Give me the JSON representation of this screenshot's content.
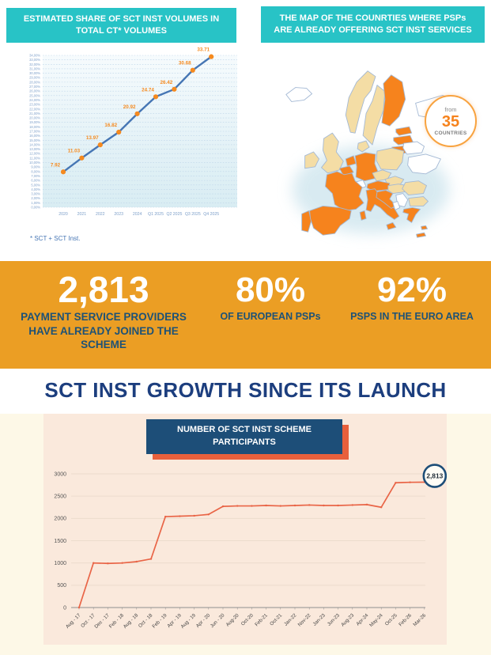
{
  "palette": {
    "teal": "#28c3c6",
    "band_orange": "#eb9e24",
    "stat_label_blue": "#1e5276",
    "royal_blue": "#1c3e7e",
    "navy": "#1d4e78",
    "coral": "#e8603c",
    "growth_line": "#e96547",
    "share_line_blue": "#4676b4",
    "share_point_orange": "#f58a1f",
    "axis_blue": "#7d9fc9",
    "map_orange": "#f6831d",
    "map_beige": "#f4dda5",
    "map_white": "#ffffff",
    "map_border": "#a3b8d4",
    "panel_peach": "#fae9dc",
    "page_cream": "#fdf8e7"
  },
  "header_left": {
    "title": "ESTIMATED SHARE OF SCT INST VOLUMES IN TOTAL CT* VOLUMES"
  },
  "header_right": {
    "title": "THE MAP OF THE COUNRTIES WHERE PSPs ARE ALREADY OFFERING SCT INST SERVICES"
  },
  "share_chart": {
    "footnote": "* SCT + SCT Inst."
  },
  "map_badge": {
    "from": "from",
    "number": "35",
    "countries": "COUNTRIES"
  },
  "stats": [
    {
      "value": "2,813",
      "label": "PAYMENT SERVICE PROVIDERS HAVE ALREADY JOINED THE SCHEME"
    },
    {
      "value": "80%",
      "label": "OF EUROPEAN PSPs"
    },
    {
      "value": "92%",
      "label": "PSPS IN THE EURO AREA"
    }
  ],
  "growth": {
    "title": "SCT INST GROWTH SINCE ITS LAUNCH",
    "chart_header": "NUMBER OF SCT INST SCHEME PARTICIPANTS"
  },
  "chart_data": [
    {
      "type": "line",
      "title": "ESTIMATED SHARE OF SCT INST VOLUMES IN TOTAL CT* VOLUMES",
      "categories": [
        "2020",
        "2021",
        "2022",
        "2023",
        "2024",
        "Q1 2025",
        "Q2 2025",
        "Q3 2025",
        "Q4 2025"
      ],
      "values": [
        7.92,
        11.03,
        13.97,
        16.82,
        20.92,
        24.74,
        26.42,
        30.68,
        33.71
      ],
      "xlabel": "",
      "ylabel": "",
      "ylim": [
        0,
        34
      ],
      "ytick_step": 1,
      "ytick_suffix": ",00%",
      "grid": "dashed-horizontal",
      "legend": "none",
      "footnote": "* SCT + SCT Inst."
    },
    {
      "type": "line",
      "title": "NUMBER OF SCT INST SCHEME PARTICIPANTS",
      "categories": [
        "Aug - 17",
        "Oct - 17",
        "Dec - 17",
        "Feb - 18",
        "Aug - 18",
        "Oct - 18",
        "Feb - 19",
        "Apr - 19",
        "Aug - 19",
        "Apr - 20",
        "Jun - 20",
        "Aug-20",
        "Oct-20",
        "Feb-21",
        "Oct-21",
        "Jan-22",
        "Nov-22",
        "Jan-23",
        "Jun-23",
        "Aug-23",
        "Apr-24",
        "May-24",
        "Oct-25",
        "Feb-26",
        "Mar-26"
      ],
      "values": [
        0,
        1000,
        990,
        1000,
        1030,
        1090,
        2040,
        2050,
        2060,
        2090,
        2270,
        2280,
        2280,
        2290,
        2280,
        2290,
        2300,
        2290,
        2290,
        2300,
        2310,
        2250,
        2800,
        2810,
        2813
      ],
      "xlabel": "",
      "ylabel": "",
      "ylim": [
        0,
        3000
      ],
      "yticks": [
        0,
        500,
        1000,
        1500,
        2000,
        2500,
        3000
      ],
      "grid": "solid-horizontal",
      "legend": "none",
      "annotation": {
        "text": "2,813",
        "at": "last-point"
      }
    }
  ]
}
